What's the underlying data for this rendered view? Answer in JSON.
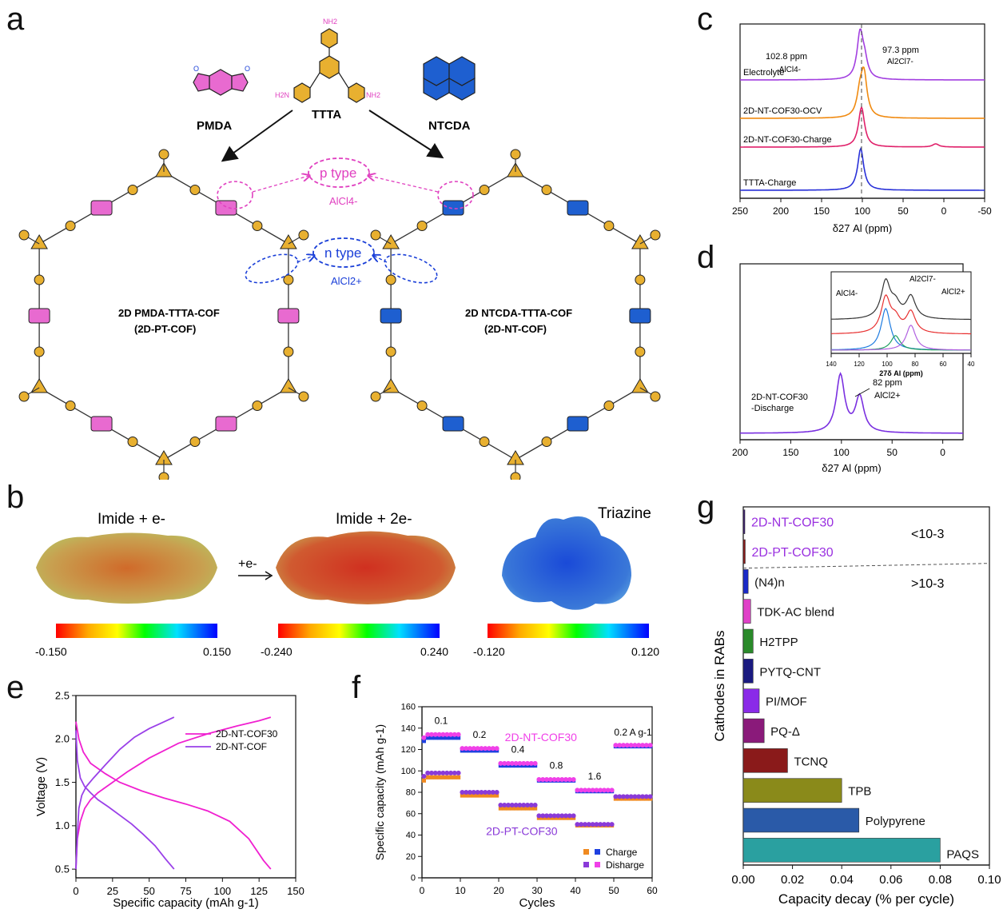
{
  "panel_letters": {
    "a": "a",
    "b": "b",
    "c": "c",
    "d": "d",
    "e": "e",
    "f": "f",
    "g": "g"
  },
  "scheme_a": {
    "pmda": "PMDA",
    "ttta": "TTTA",
    "ntcda": "NTCDA",
    "p_type": "p type",
    "alcl4": "AlCl4-",
    "n_type": "n type",
    "alcl2": "AlCl2+",
    "cof_left_line1": "2D PMDA-TTTA-COF",
    "cof_left_line2": "(2D-PT-COF)",
    "cof_right_line1": "2D NTCDA-TTTA-COF",
    "cof_right_line2": "(2D-NT-COF)",
    "nh2": "NH2",
    "h2n": "H2N",
    "atom_n": "N",
    "atom_o": "O",
    "colors": {
      "pmda": "#e86ad0",
      "ntcda": "#1e5fd0",
      "ttta": "#e8b030",
      "p_type": "#e040c0",
      "n_type": "#1a3fd8"
    }
  },
  "panel_b": {
    "titles": [
      "Imide + e-",
      "Imide + 2e-",
      "Triazine"
    ],
    "arrow_label": "+e-",
    "scales": [
      {
        "min": "-0.150",
        "max": "0.150"
      },
      {
        "min": "-0.240",
        "max": "0.240"
      },
      {
        "min": "-0.120",
        "max": "0.120"
      }
    ]
  },
  "chart_data": [
    {
      "id": "c",
      "type": "line",
      "xlabel": "δ27 Al (ppm)",
      "xlim": [
        250,
        -50
      ],
      "xticks": [
        250,
        200,
        150,
        100,
        50,
        0,
        -50
      ],
      "series": [
        {
          "name": "Electrolyte",
          "color": "#a23fe0",
          "peaks": [
            {
              "x": 102.8,
              "h": 1.0
            },
            {
              "x": 97.3,
              "h": 0.35
            }
          ]
        },
        {
          "name": "2D-NT-COF30-OCV",
          "color": "#f08a10",
          "peaks": [
            {
              "x": 98,
              "h": 1.0
            },
            {
              "x": 103,
              "h": 0.5
            }
          ]
        },
        {
          "name": "2D-NT-COF30-Charge",
          "color": "#e0206a",
          "peaks": [
            {
              "x": 101,
              "h": 1.0
            },
            {
              "x": 10,
              "h": 0.08
            }
          ]
        },
        {
          "name": "TTTA-Charge",
          "color": "#2830d8",
          "peaks": [
            {
              "x": 102,
              "h": 1.0
            }
          ]
        }
      ],
      "annotations": [
        {
          "text": "102.8 ppm"
        },
        {
          "text": "AlCl4-"
        },
        {
          "text": "97.3 ppm"
        },
        {
          "text": "Al2Cl7-"
        }
      ]
    },
    {
      "id": "d",
      "type": "line",
      "xlabel": "δ27 Al (ppm)",
      "xlim": [
        200,
        -20
      ],
      "xticks": [
        200,
        150,
        100,
        50,
        0
      ],
      "series": [
        {
          "name": "2D-NT-COF30 -Discharge",
          "color": "#7a30e0",
          "peaks": [
            {
              "x": 101,
              "h": 1.0
            },
            {
              "x": 82,
              "h": 0.62
            }
          ]
        }
      ],
      "annotations": [
        {
          "text": "82 ppm"
        },
        {
          "text": "AlCl2+"
        }
      ],
      "inset": {
        "xlabel": "27δ Al (ppm)",
        "xlim": [
          140,
          40
        ],
        "xticks": [
          140,
          120,
          100,
          80,
          60,
          40
        ],
        "labels": [
          "AlCl4-",
          "Al2Cl7-",
          "AlCl2+"
        ],
        "colors": {
          "total": "#333333",
          "fit": "#e83030",
          "alcl4": "#1e7be0",
          "al2cl7": "#20a060",
          "alcl2": "#b060e0"
        }
      }
    },
    {
      "id": "e",
      "type": "line",
      "xlabel": "Specific capacity (mAh g-1)",
      "ylabel": "Voltage (V)",
      "xlim": [
        0,
        150
      ],
      "ylim": [
        0.4,
        2.5
      ],
      "xticks": [
        0,
        25,
        50,
        75,
        100,
        125,
        150
      ],
      "yticks": [
        0.5,
        1.0,
        1.5,
        2.0,
        2.5
      ],
      "series": [
        {
          "name": "2D-NT-COF30",
          "color": "#f020d0",
          "charge": {
            "x": [
              0,
              1,
              3,
              6,
              10,
              15,
              25,
              35,
              50,
              70,
              90,
              110,
              125,
              133
            ],
            "y": [
              0.5,
              0.85,
              1.05,
              1.2,
              1.3,
              1.38,
              1.5,
              1.62,
              1.78,
              1.95,
              2.06,
              2.15,
              2.21,
              2.25
            ]
          },
          "discharge": {
            "x": [
              0,
              2,
              5,
              10,
              20,
              30,
              45,
              60,
              75,
              90,
              105,
              118,
              128,
              133
            ],
            "y": [
              2.2,
              2.0,
              1.85,
              1.72,
              1.6,
              1.5,
              1.4,
              1.32,
              1.25,
              1.17,
              1.05,
              0.85,
              0.6,
              0.5
            ]
          }
        },
        {
          "name": "2D-NT-COF",
          "color": "#9a40e8",
          "charge": {
            "x": [
              0,
              1,
              2,
              4,
              7,
              12,
              20,
              30,
              40,
              50,
              58,
              63,
              67
            ],
            "y": [
              0.5,
              0.9,
              1.2,
              1.35,
              1.45,
              1.55,
              1.7,
              1.88,
              2.02,
              2.12,
              2.18,
              2.22,
              2.25
            ]
          },
          "discharge": {
            "x": [
              0,
              1,
              3,
              6,
              10,
              15,
              22,
              30,
              38,
              46,
              54,
              61,
              67
            ],
            "y": [
              2.1,
              1.75,
              1.55,
              1.45,
              1.38,
              1.3,
              1.22,
              1.12,
              1.02,
              0.9,
              0.77,
              0.62,
              0.5
            ]
          }
        }
      ]
    },
    {
      "id": "f",
      "type": "scatter",
      "xlabel": "Cycles",
      "ylabel": "Specific capacity (mAh g-1)",
      "xlim": [
        0,
        60
      ],
      "ylim": [
        0,
        160
      ],
      "xticks": [
        0,
        10,
        20,
        30,
        40,
        50,
        60
      ],
      "yticks": [
        0,
        20,
        40,
        60,
        80,
        100,
        120,
        140,
        160
      ],
      "rate_labels": [
        "0.1",
        "0.2",
        "0.4",
        "0.8",
        "1.6",
        "0.2 A g-1"
      ],
      "series_labels": [
        "2D-NT-COF30",
        "2D-PT-COF30"
      ],
      "legend": [
        "Charge",
        "Disharge"
      ],
      "legend_position": "bottom-right",
      "nt_charge": [
        131,
        119,
        105,
        91,
        81,
        123
      ],
      "nt_discharge": [
        134,
        121,
        107,
        92,
        82,
        124
      ],
      "pt_charge": [
        94,
        77,
        65,
        56,
        49,
        74
      ],
      "pt_discharge": [
        98,
        80,
        68,
        58,
        50,
        76
      ],
      "colors": {
        "nt_charge": "#1e40e0",
        "nt_discharge": "#f040e8",
        "pt_charge": "#f08a20",
        "pt_discharge": "#8a3ad8"
      }
    },
    {
      "id": "g",
      "type": "bar",
      "orientation": "horizontal",
      "xlabel": "Capacity decay (% per cycle)",
      "ylabel": "Cathodes in RABs",
      "xlim": [
        0,
        0.1
      ],
      "xticks": [
        "0.00",
        "0.02",
        "0.04",
        "0.06",
        "0.08",
        "0.10"
      ],
      "categories": [
        "2D-NT-COF30",
        "2D-PT-COF30",
        "(N4)n",
        "TDK-AC blend",
        "H2TPP",
        "PYTQ-CNT",
        "PI/MOF",
        "PQ-Δ",
        "TCNQ",
        "TPB",
        "Polypyrene",
        "PAQS"
      ],
      "values": [
        0.0005,
        0.0008,
        0.002,
        0.003,
        0.004,
        0.004,
        0.0065,
        0.0085,
        0.018,
        0.04,
        0.047,
        0.08
      ],
      "colors": [
        "#3a1a70",
        "#8a1a1a",
        "#1a2ac8",
        "#e040c8",
        "#2a8a2a",
        "#1a1a80",
        "#8a2ae8",
        "#8a1a7a",
        "#8a1a1a",
        "#8a8a1a",
        "#2a5aa8",
        "#2aa0a0"
      ],
      "label_colors": [
        "#9a30e0",
        "#9a30e0",
        "#111111",
        "#111111",
        "#111111",
        "#111111",
        "#111111",
        "#111111",
        "#111111",
        "#111111",
        "#111111",
        "#111111"
      ],
      "threshold_low": "<10-3",
      "threshold_high": ">10-3"
    }
  ]
}
